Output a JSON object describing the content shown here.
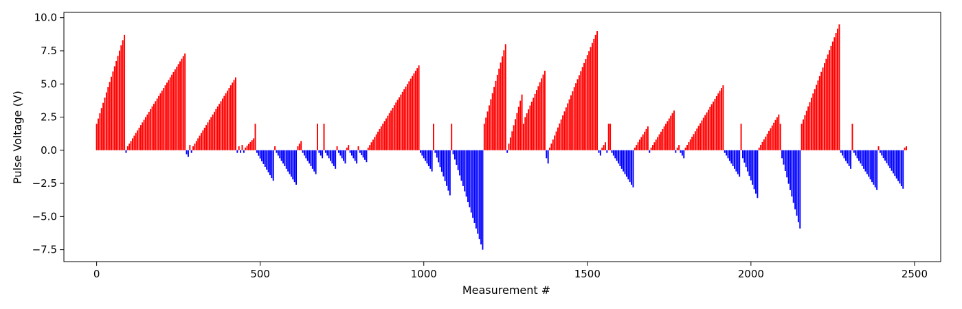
{
  "chart_data": {
    "type": "bar",
    "title": "",
    "xlabel": "Measurement #",
    "ylabel": "Pulse Voltage (V)",
    "xlim": [
      -100,
      2580
    ],
    "ylim": [
      -8.4,
      10.4
    ],
    "xticks": [
      0,
      500,
      1000,
      1500,
      2000,
      2500
    ],
    "xtick_labels": [
      "0",
      "500",
      "1000",
      "1500",
      "2000",
      "2500"
    ],
    "yticks": [
      -7.5,
      -5.0,
      -2.5,
      0.0,
      2.5,
      5.0,
      7.5,
      10.0
    ],
    "ytick_labels": [
      "−7.5",
      "−5.0",
      "−2.5",
      "0.0",
      "2.5",
      "5.0",
      "7.5",
      "10.0"
    ],
    "grid": false,
    "legend": "none",
    "positive_color": "#ff0000",
    "negative_color": "#0000ff",
    "bar_spacing": 5,
    "segments": [
      {
        "x0": 0,
        "x1": 85,
        "y0": 2.0,
        "y1": 8.7
      },
      {
        "x0": 90,
        "x1": 90,
        "y0": -0.2,
        "y1": -0.2
      },
      {
        "x0": 95,
        "x1": 270,
        "y0": 0.3,
        "y1": 7.3
      },
      {
        "x0": 275,
        "x1": 280,
        "y0": -0.3,
        "y1": -0.5
      },
      {
        "x0": 285,
        "x1": 285,
        "y0": 0.4,
        "y1": 0.4
      },
      {
        "x0": 290,
        "x1": 290,
        "y0": -0.2,
        "y1": -0.2
      },
      {
        "x0": 295,
        "x1": 425,
        "y0": 0.3,
        "y1": 5.5
      },
      {
        "x0": 430,
        "x1": 430,
        "y0": -0.2,
        "y1": -0.2
      },
      {
        "x0": 435,
        "x1": 435,
        "y0": 0.3,
        "y1": 0.3
      },
      {
        "x0": 440,
        "x1": 440,
        "y0": -0.2,
        "y1": -0.2
      },
      {
        "x0": 445,
        "x1": 445,
        "y0": 0.4,
        "y1": 0.4
      },
      {
        "x0": 450,
        "x1": 450,
        "y0": -0.2,
        "y1": -0.2
      },
      {
        "x0": 455,
        "x1": 480,
        "y0": 0.2,
        "y1": 0.9
      },
      {
        "x0": 485,
        "x1": 485,
        "y0": 2.0,
        "y1": 2.0
      },
      {
        "x0": 490,
        "x1": 540,
        "y0": -0.2,
        "y1": -2.3
      },
      {
        "x0": 545,
        "x1": 545,
        "y0": 0.3,
        "y1": 0.3
      },
      {
        "x0": 550,
        "x1": 610,
        "y0": -0.2,
        "y1": -2.6
      },
      {
        "x0": 615,
        "x1": 625,
        "y0": 0.3,
        "y1": 0.7
      },
      {
        "x0": 630,
        "x1": 670,
        "y0": -0.2,
        "y1": -1.8
      },
      {
        "x0": 675,
        "x1": 675,
        "y0": 2.0,
        "y1": 2.0
      },
      {
        "x0": 680,
        "x1": 690,
        "y0": -0.2,
        "y1": -0.6
      },
      {
        "x0": 695,
        "x1": 695,
        "y0": 2.0,
        "y1": 2.0
      },
      {
        "x0": 700,
        "x1": 730,
        "y0": -0.2,
        "y1": -1.4
      },
      {
        "x0": 735,
        "x1": 735,
        "y0": 0.3,
        "y1": 0.3
      },
      {
        "x0": 740,
        "x1": 760,
        "y0": -0.2,
        "y1": -1.0
      },
      {
        "x0": 765,
        "x1": 770,
        "y0": 0.2,
        "y1": 0.4
      },
      {
        "x0": 775,
        "x1": 795,
        "y0": -0.2,
        "y1": -1.0
      },
      {
        "x0": 800,
        "x1": 800,
        "y0": 0.3,
        "y1": 0.3
      },
      {
        "x0": 805,
        "x1": 825,
        "y0": -0.2,
        "y1": -0.9
      },
      {
        "x0": 830,
        "x1": 985,
        "y0": 0.2,
        "y1": 6.4
      },
      {
        "x0": 990,
        "x1": 1025,
        "y0": -0.2,
        "y1": -1.6
      },
      {
        "x0": 1030,
        "x1": 1030,
        "y0": 2.0,
        "y1": 2.0
      },
      {
        "x0": 1035,
        "x1": 1080,
        "y0": -0.2,
        "y1": -3.4
      },
      {
        "x0": 1085,
        "x1": 1085,
        "y0": 2.0,
        "y1": 2.0
      },
      {
        "x0": 1090,
        "x1": 1180,
        "y0": -0.3,
        "y1": -7.5
      },
      {
        "x0": 1185,
        "x1": 1250,
        "y0": 2.0,
        "y1": 8.0
      },
      {
        "x0": 1255,
        "x1": 1255,
        "y0": -0.2,
        "y1": -0.2
      },
      {
        "x0": 1260,
        "x1": 1300,
        "y0": 0.5,
        "y1": 4.2
      },
      {
        "x0": 1305,
        "x1": 1305,
        "y0": 2.0,
        "y1": 2.0
      },
      {
        "x0": 1310,
        "x1": 1370,
        "y0": 2.5,
        "y1": 6.0
      },
      {
        "x0": 1375,
        "x1": 1380,
        "y0": -0.6,
        "y1": -1.0
      },
      {
        "x0": 1385,
        "x1": 1530,
        "y0": 0.2,
        "y1": 9.0
      },
      {
        "x0": 1535,
        "x1": 1540,
        "y0": -0.2,
        "y1": -0.4
      },
      {
        "x0": 1545,
        "x1": 1555,
        "y0": 0.2,
        "y1": 0.6
      },
      {
        "x0": 1560,
        "x1": 1560,
        "y0": -0.2,
        "y1": -0.2
      },
      {
        "x0": 1565,
        "x1": 1570,
        "y0": 2.0,
        "y1": 2.0
      },
      {
        "x0": 1575,
        "x1": 1640,
        "y0": -0.2,
        "y1": -2.8
      },
      {
        "x0": 1645,
        "x1": 1685,
        "y0": 0.2,
        "y1": 1.8
      },
      {
        "x0": 1690,
        "x1": 1690,
        "y0": -0.2,
        "y1": -0.2
      },
      {
        "x0": 1695,
        "x1": 1765,
        "y0": 0.2,
        "y1": 3.0
      },
      {
        "x0": 1770,
        "x1": 1770,
        "y0": -0.2,
        "y1": -0.2
      },
      {
        "x0": 1775,
        "x1": 1780,
        "y0": 0.2,
        "y1": 0.4
      },
      {
        "x0": 1785,
        "x1": 1795,
        "y0": -0.2,
        "y1": -0.6
      },
      {
        "x0": 1800,
        "x1": 1915,
        "y0": 0.2,
        "y1": 4.9
      },
      {
        "x0": 1920,
        "x1": 1965,
        "y0": -0.2,
        "y1": -2.0
      },
      {
        "x0": 1970,
        "x1": 1970,
        "y0": 2.0,
        "y1": 2.0
      },
      {
        "x0": 1975,
        "x1": 2020,
        "y0": -0.6,
        "y1": -3.6
      },
      {
        "x0": 2025,
        "x1": 2085,
        "y0": 0.2,
        "y1": 2.7
      },
      {
        "x0": 2090,
        "x1": 2090,
        "y0": 2.0,
        "y1": 2.0
      },
      {
        "x0": 2095,
        "x1": 2150,
        "y0": -0.6,
        "y1": -5.9
      },
      {
        "x0": 2155,
        "x1": 2270,
        "y0": 2.0,
        "y1": 9.5
      },
      {
        "x0": 2275,
        "x1": 2305,
        "y0": -0.2,
        "y1": -1.4
      },
      {
        "x0": 2310,
        "x1": 2310,
        "y0": 2.0,
        "y1": 2.0
      },
      {
        "x0": 2315,
        "x1": 2385,
        "y0": -0.2,
        "y1": -3.0
      },
      {
        "x0": 2390,
        "x1": 2390,
        "y0": 0.3,
        "y1": 0.3
      },
      {
        "x0": 2395,
        "x1": 2465,
        "y0": -0.2,
        "y1": -2.9
      },
      {
        "x0": 2470,
        "x1": 2475,
        "y0": 0.2,
        "y1": 0.3
      }
    ]
  }
}
